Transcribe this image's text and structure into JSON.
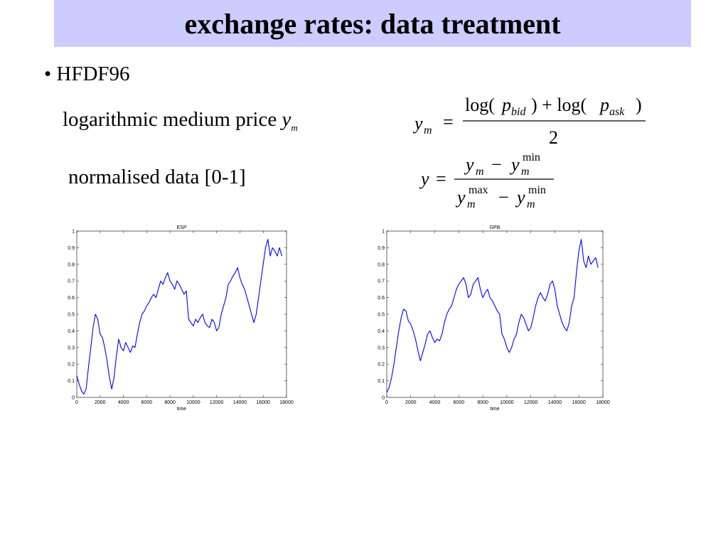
{
  "slide": {
    "title": "exchange rates: data treatment",
    "bullet_marker": "•",
    "bullet": "HFDF96"
  },
  "rows": [
    {
      "label": "logarithmic medium price",
      "var": "y",
      "var_sub": "m"
    },
    {
      "label": "normalised data [0-1]"
    }
  ],
  "formula1": {
    "lhs": "y",
    "lhs_sub": "m",
    "eq": "=",
    "num_a": "log(",
    "num_p1": "p",
    "num_p1_sub": "bid",
    "num_mid": ") + log(",
    "num_p2": "p",
    "num_p2_sub": "ask",
    "num_close": ")",
    "den": "2"
  },
  "formula2": {
    "lhs": "y",
    "eq": "=",
    "num_y1": "y",
    "num_y1_sub": "m",
    "minus": "−",
    "num_y2": "y",
    "num_y2_sub": "m",
    "num_y2_sup": "min",
    "den_y1": "y",
    "den_y1_sub": "m",
    "den_y1_sup": "max",
    "den_y2": "y",
    "den_y2_sub": "m",
    "den_y2_sup": "min"
  },
  "chart_data": [
    {
      "type": "line",
      "title": "ESP",
      "xlabel": "time",
      "ylabel": "",
      "xlim": [
        0,
        18000
      ],
      "ylim": [
        0,
        1
      ],
      "xticks": [
        0,
        2000,
        4000,
        6000,
        8000,
        10000,
        12000,
        14000,
        16000,
        18000
      ],
      "yticks": [
        0.1,
        0.2,
        0.3,
        0.4,
        0.5,
        0.6,
        0.7,
        0.8,
        0.9,
        1
      ],
      "xtick_labels": [
        "0",
        "2000",
        "4000",
        "6000",
        "8000",
        "10000",
        "12000",
        "14000",
        "16000",
        "18000"
      ],
      "ytick_labels": [
        "0.1",
        "0.2",
        "0.3",
        "0.4",
        "0.5",
        "0.6",
        "0.7",
        "0.8",
        "0.9",
        "1"
      ],
      "x0_label": "0",
      "line_color": "#0000ff",
      "series": [
        {
          "x": [
            0,
            200,
            400,
            600,
            800,
            1000,
            1200,
            1400,
            1600,
            1800,
            2000,
            2200,
            2400,
            2600,
            2800,
            3000,
            3200,
            3400,
            3600,
            3800,
            4000,
            4200,
            4400,
            4600,
            4800,
            5000,
            5200,
            5400,
            5600,
            5800,
            6000,
            6200,
            6400,
            6600,
            6800,
            7000,
            7200,
            7400,
            7600,
            7800,
            8000,
            8200,
            8400,
            8600,
            8800,
            9000,
            9200,
            9400,
            9600,
            9800,
            10000,
            10200,
            10400,
            10600,
            10800,
            11000,
            11200,
            11400,
            11600,
            11800,
            12000,
            12200,
            12400,
            12600,
            12800,
            13000,
            13200,
            13400,
            13600,
            13800,
            14000,
            14200,
            14400,
            14600,
            14800,
            15000,
            15200,
            15400,
            15600,
            15800,
            16000,
            16200,
            16400,
            16600,
            16800,
            17000,
            17200,
            17400,
            17600
          ],
          "y": [
            0.13,
            0.08,
            0.04,
            0.02,
            0.05,
            0.18,
            0.3,
            0.42,
            0.5,
            0.47,
            0.38,
            0.36,
            0.3,
            0.22,
            0.12,
            0.05,
            0.12,
            0.25,
            0.35,
            0.3,
            0.28,
            0.33,
            0.3,
            0.27,
            0.31,
            0.3,
            0.38,
            0.45,
            0.5,
            0.52,
            0.55,
            0.57,
            0.6,
            0.62,
            0.6,
            0.65,
            0.7,
            0.68,
            0.72,
            0.75,
            0.7,
            0.68,
            0.65,
            0.7,
            0.68,
            0.65,
            0.62,
            0.64,
            0.47,
            0.45,
            0.43,
            0.47,
            0.45,
            0.48,
            0.5,
            0.45,
            0.43,
            0.42,
            0.47,
            0.45,
            0.4,
            0.42,
            0.5,
            0.55,
            0.6,
            0.68,
            0.7,
            0.73,
            0.75,
            0.78,
            0.72,
            0.68,
            0.65,
            0.6,
            0.55,
            0.5,
            0.45,
            0.5,
            0.6,
            0.7,
            0.8,
            0.9,
            0.95,
            0.85,
            0.9,
            0.88,
            0.85,
            0.9,
            0.85
          ]
        }
      ]
    },
    {
      "type": "line",
      "title": "GPB",
      "xlabel": "time",
      "ylabel": "",
      "xlim": [
        0,
        18000
      ],
      "ylim": [
        0,
        1
      ],
      "xticks": [
        0,
        2000,
        4000,
        6000,
        8000,
        10000,
        12000,
        14000,
        16000,
        18000
      ],
      "yticks": [
        0.1,
        0.2,
        0.3,
        0.4,
        0.5,
        0.6,
        0.7,
        0.8,
        0.9,
        1
      ],
      "xtick_labels": [
        "0",
        "2000",
        "4000",
        "6000",
        "8000",
        "10000",
        "12000",
        "14000",
        "16000",
        "18000"
      ],
      "ytick_labels": [
        "0.1",
        "0.2",
        "0.3",
        "0.4",
        "0.5",
        "0.6",
        "0.7",
        "0.8",
        "0.9",
        "1"
      ],
      "x0_label": "0",
      "line_color": "#0000ff",
      "series": [
        {
          "x": [
            0,
            200,
            400,
            600,
            800,
            1000,
            1200,
            1400,
            1600,
            1800,
            2000,
            2200,
            2400,
            2600,
            2800,
            3000,
            3200,
            3400,
            3600,
            3800,
            4000,
            4200,
            4400,
            4600,
            4800,
            5000,
            5200,
            5400,
            5600,
            5800,
            6000,
            6200,
            6400,
            6600,
            6800,
            7000,
            7200,
            7400,
            7600,
            7800,
            8000,
            8200,
            8400,
            8600,
            8800,
            9000,
            9200,
            9400,
            9600,
            9800,
            10000,
            10200,
            10400,
            10600,
            10800,
            11000,
            11200,
            11400,
            11600,
            11800,
            12000,
            12200,
            12400,
            12600,
            12800,
            13000,
            13200,
            13400,
            13600,
            13800,
            14000,
            14200,
            14400,
            14600,
            14800,
            15000,
            15200,
            15400,
            15600,
            15800,
            16000,
            16200,
            16400,
            16600,
            16800,
            17000,
            17200,
            17400,
            17600
          ],
          "y": [
            0.03,
            0.06,
            0.12,
            0.2,
            0.3,
            0.4,
            0.48,
            0.53,
            0.52,
            0.46,
            0.44,
            0.4,
            0.35,
            0.28,
            0.22,
            0.27,
            0.32,
            0.38,
            0.4,
            0.36,
            0.33,
            0.35,
            0.34,
            0.38,
            0.45,
            0.5,
            0.53,
            0.55,
            0.6,
            0.65,
            0.68,
            0.7,
            0.72,
            0.68,
            0.6,
            0.62,
            0.68,
            0.7,
            0.72,
            0.65,
            0.6,
            0.63,
            0.65,
            0.6,
            0.58,
            0.55,
            0.52,
            0.5,
            0.38,
            0.35,
            0.3,
            0.27,
            0.3,
            0.35,
            0.38,
            0.45,
            0.5,
            0.48,
            0.44,
            0.4,
            0.42,
            0.48,
            0.55,
            0.6,
            0.63,
            0.6,
            0.58,
            0.62,
            0.68,
            0.7,
            0.65,
            0.55,
            0.5,
            0.45,
            0.42,
            0.4,
            0.45,
            0.55,
            0.6,
            0.75,
            0.88,
            0.95,
            0.82,
            0.78,
            0.85,
            0.8,
            0.82,
            0.84,
            0.78
          ]
        }
      ]
    }
  ]
}
